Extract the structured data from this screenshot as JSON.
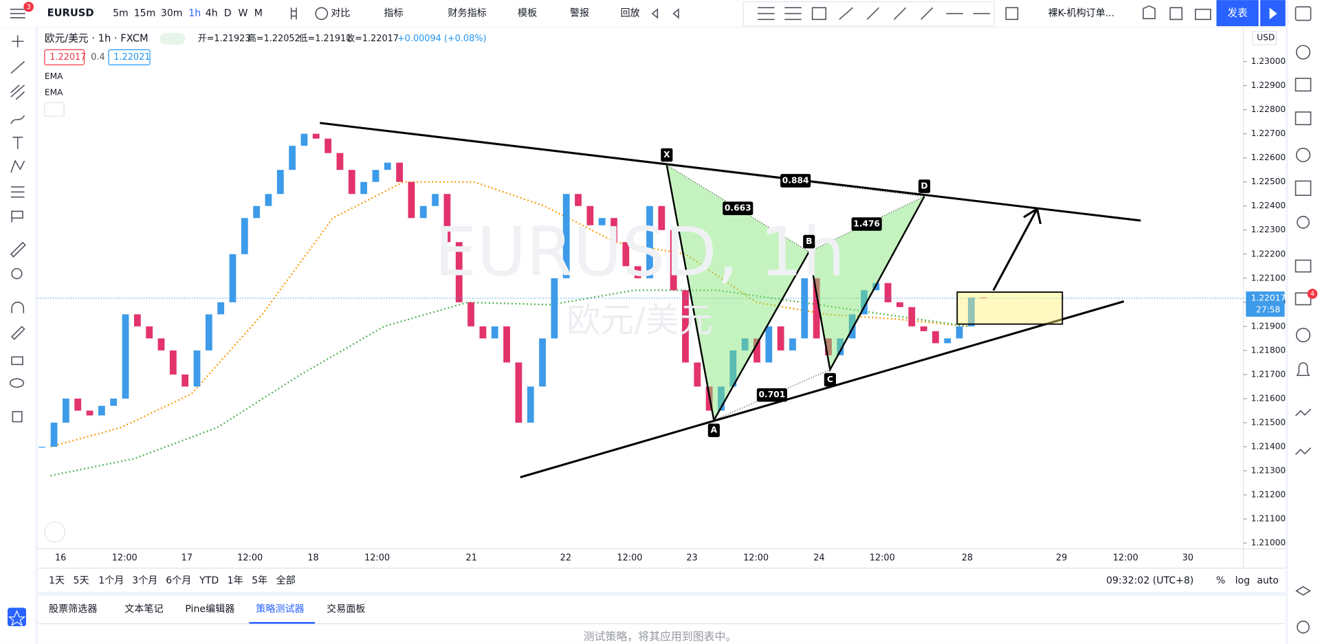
{
  "toolbar": {
    "symbol": "EURUSD",
    "badge": "3",
    "intervals": [
      "5m",
      "15m",
      "30m",
      "1h",
      "4h",
      "D",
      "W",
      "M"
    ],
    "buttons": [
      "对比",
      "指标",
      "财务指标",
      "模板",
      "警报",
      "回放"
    ],
    "layout": "裸K-机构订单...",
    "publish": "发表"
  },
  "legend": {
    "title": "欧元/美元 · 1h · FXCM",
    "open": "开=1.21923",
    "high": "高=1.22052",
    "low": "低=1.21911",
    "close": "收=1.22017",
    "change": "+0.00094 (+0.08%)",
    "bid": "1.22017",
    "spread": "0.4",
    "ask": "1.22021",
    "indicators": [
      "EMA",
      "EMA"
    ]
  },
  "watermark": {
    "symbol": "EURUSD, 1h",
    "name": "欧元/美元"
  },
  "chart": {
    "closes": [
      1.214,
      1.215,
      1.216,
      1.2155,
      1.2153,
      1.2157,
      1.216,
      1.2195,
      1.219,
      1.2185,
      1.218,
      1.217,
      1.2165,
      1.218,
      1.2195,
      1.22,
      1.222,
      1.2235,
      1.224,
      1.2245,
      1.2255,
      1.2265,
      1.227,
      1.2268,
      1.2262,
      1.2255,
      1.2245,
      1.225,
      1.2255,
      1.2258,
      1.225,
      1.2235,
      1.224,
      1.2245,
      1.2225,
      1.22,
      1.219,
      1.2185,
      1.219,
      1.2175,
      1.215,
      1.2165,
      1.2185,
      1.221,
      1.2245,
      1.224,
      1.2232,
      1.2235,
      1.2225,
      1.2215,
      1.221,
      1.224,
      1.223,
      1.2205,
      1.2175,
      1.2165,
      1.2155,
      1.2165,
      1.218,
      1.2185,
      1.2175,
      1.219,
      1.218,
      1.2185,
      1.221,
      1.2185,
      1.2178,
      1.2185,
      1.2195,
      1.2205,
      1.2208,
      1.22,
      1.2198,
      1.219,
      1.2188,
      1.2183,
      1.2185,
      1.219,
      1.2202,
      1.22017
    ],
    "ema_fast": [
      1.214,
      1.2148,
      1.2162,
      1.2195,
      1.2235,
      1.225,
      1.225,
      1.224,
      1.2225,
      1.222,
      1.22,
      1.2195,
      1.2193,
      1.219
    ],
    "ema_slow": [
      1.2128,
      1.2135,
      1.2148,
      1.217,
      1.219,
      1.22,
      1.2199,
      1.2205,
      1.2205,
      1.22,
      1.2195,
      1.219
    ],
    "ylim": [
      1.20976,
      1.23133
    ],
    "yticks": [
      {
        "value": 1.23,
        "label": "1.23000"
      },
      {
        "value": 1.229,
        "label": "1.22900"
      },
      {
        "value": 1.228,
        "label": "1.22800"
      },
      {
        "value": 1.227,
        "label": "1.22700"
      },
      {
        "value": 1.226,
        "label": "1.22600"
      },
      {
        "value": 1.225,
        "label": "1.22500"
      },
      {
        "value": 1.224,
        "label": "1.22400"
      },
      {
        "value": 1.223,
        "label": "1.22300"
      },
      {
        "value": 1.222,
        "label": "1.22200"
      },
      {
        "value": 1.221,
        "label": "1.22100"
      },
      {
        "value": 1.22,
        "label": "1.22000"
      },
      {
        "value": 1.219,
        "label": "1.21900"
      },
      {
        "value": 1.218,
        "label": "1.21800"
      },
      {
        "value": 1.217,
        "label": "1.21700"
      },
      {
        "value": 1.216,
        "label": "1.21600"
      },
      {
        "value": 1.215,
        "label": "1.21500"
      },
      {
        "value": 1.214,
        "label": "1.21400"
      },
      {
        "value": 1.213,
        "label": "1.21300"
      },
      {
        "value": 1.212,
        "label": "1.21200"
      },
      {
        "value": 1.211,
        "label": "1.21100"
      },
      {
        "value": 1.21,
        "label": "1.21000"
      }
    ],
    "xtick_labels": [
      "16",
      "12:00",
      "17",
      "12:00",
      "18",
      "12:00",
      "21",
      "22",
      "12:00",
      "23",
      "12:00",
      "24",
      "12:00",
      "28",
      "29",
      "12:00",
      "30"
    ],
    "currency": "USD",
    "last_price": "1.22017",
    "countdown": "27:58",
    "pattern": {
      "points": [
        {
          "label": "X",
          "price": 1.2257
        },
        {
          "label": "A",
          "price": 1.2151
        },
        {
          "label": "B",
          "price": 1.2221
        },
        {
          "label": "C",
          "price": 1.2172
        },
        {
          "label": "D",
          "price": 1.2244
        }
      ],
      "ratios": [
        "0.884",
        "0.663",
        "1.476",
        "0.701"
      ]
    }
  },
  "range_bar": {
    "ranges": [
      "1天",
      "5天",
      "1个月",
      "3个月",
      "6个月",
      "YTD",
      "1年",
      "5年",
      "全部"
    ],
    "clock": "09:32:02 (UTC+8)",
    "options": [
      "%",
      "log",
      "auto"
    ]
  },
  "bottom_panel": {
    "tabs": [
      "股票筛选器",
      "文本笔记",
      "Pine编辑器",
      "策略测试器",
      "交易面板"
    ],
    "message": "测试策略，将其应用到图表中。"
  },
  "sidebar": {
    "badge": "4"
  }
}
